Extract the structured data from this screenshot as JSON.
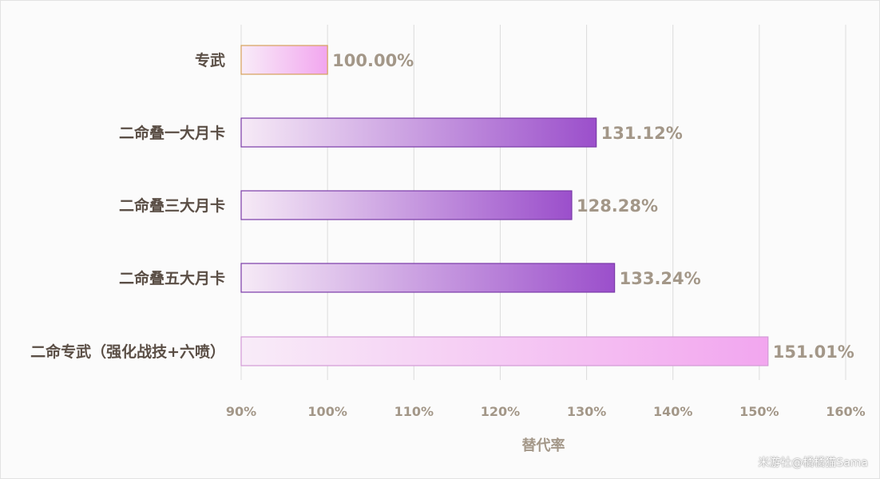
{
  "chart_data": {
    "type": "bar",
    "orientation": "horizontal",
    "categories": [
      "专武",
      "二命叠一大月卡",
      "二命叠三大月卡",
      "二命叠五大月卡",
      "二命专武（强化战技+六喷）"
    ],
    "values": [
      100.0,
      131.12,
      128.28,
      133.24,
      151.01
    ],
    "value_labels": [
      "100.00%",
      "131.12%",
      "128.28%",
      "133.24%",
      "151.01%"
    ],
    "xlabel": "替代率",
    "ylabel": "",
    "xlim": [
      90,
      160
    ],
    "xticks": [
      90,
      100,
      110,
      120,
      130,
      140,
      150,
      160
    ],
    "xtick_labels": [
      "90%",
      "100%",
      "110%",
      "120%",
      "130%",
      "140%",
      "150%",
      "160%"
    ],
    "grid": "vertical",
    "bar_colors": [
      "pink",
      "purple",
      "purple",
      "purple",
      "pink"
    ],
    "colors": {
      "pink_start": "#f8ecf8",
      "pink_end": "#f2a6ef",
      "purple_start": "#f6eaf6",
      "purple_end": "#9b4fcb",
      "gridline": "#dcdcdc"
    }
  },
  "watermark": "米游社@橘橘猫Sama"
}
